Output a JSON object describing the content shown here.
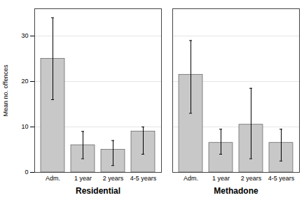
{
  "chart_data": {
    "type": "bar",
    "ylabel": "Mean no. offences",
    "categories": [
      "Adm.",
      "1 year",
      "2 years",
      "4-5 years"
    ],
    "series": [
      {
        "name": "Residential",
        "values": [
          25.0,
          6.0,
          5.0,
          9.0
        ],
        "error_low": [
          16.0,
          3.0,
          1.5,
          4.0
        ],
        "error_high": [
          34.0,
          9.0,
          7.0,
          10.0
        ]
      },
      {
        "name": "Methadone",
        "values": [
          21.5,
          6.5,
          10.5,
          6.5
        ],
        "error_low": [
          13.0,
          4.0,
          3.0,
          2.5
        ],
        "error_high": [
          29.0,
          9.5,
          18.5,
          9.5
        ]
      }
    ],
    "color": "#c8c8c8",
    "ylim": [
      0,
      36
    ],
    "yticks": [
      0,
      10,
      20,
      30
    ],
    "grid": true
  }
}
